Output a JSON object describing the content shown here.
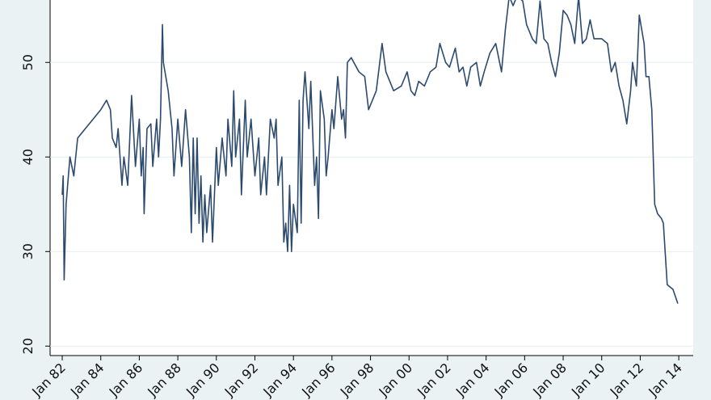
{
  "chart_data": {
    "type": "line",
    "color": "#2c4a6e",
    "grid": true,
    "xlim": [
      1981.37,
      2014.75
    ],
    "ylim": [
      19,
      56.6
    ],
    "yticks": [
      20,
      30,
      40,
      50
    ],
    "xticks": [
      {
        "value": 1982,
        "label": "Jan 82"
      },
      {
        "value": 1984,
        "label": "Jan 84"
      },
      {
        "value": 1986,
        "label": "Jan 86"
      },
      {
        "value": 1988,
        "label": "Jan 88"
      },
      {
        "value": 1990,
        "label": "Jan 90"
      },
      {
        "value": 1992,
        "label": "Jan 92"
      },
      {
        "value": 1994,
        "label": "Jan 94"
      },
      {
        "value": 1996,
        "label": "Jan 96"
      },
      {
        "value": 1998,
        "label": "Jan 98"
      },
      {
        "value": 2000,
        "label": "Jan 00"
      },
      {
        "value": 2002,
        "label": "Jan 02"
      },
      {
        "value": 2004,
        "label": "Jan 04"
      },
      {
        "value": 2006,
        "label": "Jan 06"
      },
      {
        "value": 2008,
        "label": "Jan 08"
      },
      {
        "value": 2010,
        "label": "Jan 10"
      },
      {
        "value": 2012,
        "label": "Jan 12"
      },
      {
        "value": 2014,
        "label": "Jan 14"
      }
    ],
    "x": [
      1982.0,
      1982.05,
      1982.1,
      1982.2,
      1982.4,
      1982.6,
      1982.8,
      1983.2,
      1983.6,
      1984.0,
      1984.3,
      1984.5,
      1984.6,
      1984.8,
      1984.9,
      1985.1,
      1985.2,
      1985.4,
      1985.6,
      1985.8,
      1986.0,
      1986.1,
      1986.2,
      1986.25,
      1986.4,
      1986.6,
      1986.7,
      1986.9,
      1987.0,
      1987.1,
      1987.2,
      1987.25,
      1987.5,
      1987.7,
      1987.8,
      1988.0,
      1988.2,
      1988.4,
      1988.6,
      1988.7,
      1988.8,
      1988.9,
      1989.0,
      1989.1,
      1989.2,
      1989.3,
      1989.4,
      1989.5,
      1989.7,
      1989.8,
      1990.0,
      1990.1,
      1990.3,
      1990.5,
      1990.6,
      1990.8,
      1990.9,
      1991.0,
      1991.2,
      1991.3,
      1991.5,
      1991.6,
      1991.8,
      1992.0,
      1992.2,
      1992.3,
      1992.5,
      1992.6,
      1992.8,
      1993.0,
      1993.1,
      1993.2,
      1993.4,
      1993.5,
      1993.6,
      1993.7,
      1993.8,
      1993.9,
      1994.0,
      1994.2,
      1994.3,
      1994.4,
      1994.5,
      1994.6,
      1994.8,
      1994.9,
      1995.1,
      1995.2,
      1995.3,
      1995.4,
      1995.6,
      1995.7,
      1995.8,
      1996.0,
      1996.1,
      1996.3,
      1996.5,
      1996.6,
      1996.7,
      1996.8,
      1997.0,
      1997.4,
      1997.7,
      1997.9,
      1998.3,
      1998.6,
      1998.8,
      1999.2,
      1999.6,
      1999.9,
      2000.1,
      2000.3,
      2000.5,
      2000.8,
      2001.1,
      2001.4,
      2001.6,
      2001.9,
      2002.1,
      2002.4,
      2002.6,
      2002.8,
      2003.0,
      2003.2,
      2003.5,
      2003.7,
      2003.9,
      2004.2,
      2004.5,
      2004.8,
      2005.0,
      2005.2,
      2005.4,
      2005.6,
      2005.9,
      2006.1,
      2006.4,
      2006.6,
      2006.8,
      2007.0,
      2007.2,
      2007.4,
      2007.6,
      2007.8,
      2008.0,
      2008.2,
      2008.4,
      2008.6,
      2008.8,
      2009.0,
      2009.2,
      2009.4,
      2009.6,
      2010.0,
      2010.3,
      2010.5,
      2010.7,
      2010.9,
      2011.1,
      2011.3,
      2011.5,
      2011.6,
      2011.8,
      2011.95,
      2012.2,
      2012.3,
      2012.45,
      2012.6,
      2012.75,
      2012.9,
      2013.1,
      2013.2,
      2013.4,
      2013.7,
      2013.95
    ],
    "values": [
      36,
      38,
      27,
      35,
      40,
      38,
      42,
      43,
      44,
      45,
      46,
      45,
      42,
      41,
      43,
      37,
      40,
      37,
      46.5,
      39,
      44,
      38,
      41,
      34,
      43,
      43.5,
      39,
      44,
      40,
      44,
      54,
      50,
      47,
      43,
      38,
      44,
      39,
      45,
      40,
      32,
      42,
      34,
      42,
      33,
      38,
      31,
      36,
      32,
      37,
      31,
      41,
      37,
      42,
      38,
      44,
      39,
      47,
      40,
      44,
      36,
      46,
      40,
      44,
      38,
      42,
      36,
      40,
      36,
      44,
      42,
      44,
      37,
      40,
      31,
      33,
      30,
      37,
      30,
      35,
      32,
      46,
      33,
      46,
      49,
      43,
      48,
      37,
      40,
      33.5,
      47,
      44,
      38,
      40,
      45,
      43,
      48.5,
      44,
      45,
      42,
      50,
      50.5,
      49,
      48.5,
      45,
      47,
      52,
      49,
      47,
      47.5,
      49,
      47,
      46.5,
      48,
      47.5,
      49,
      49.5,
      52,
      50,
      49.5,
      51.5,
      49,
      49.5,
      47.5,
      49.5,
      50,
      47.5,
      49,
      51,
      52,
      49,
      53.5,
      57,
      56,
      57,
      56.5,
      54,
      52.5,
      52,
      56.5,
      52.5,
      52,
      50,
      48.5,
      51,
      55.5,
      55,
      54,
      52,
      57,
      52,
      52.5,
      54.5,
      52.5,
      52.5,
      52,
      49,
      50,
      47.5,
      46,
      43.5,
      47,
      50,
      47.5,
      55,
      52,
      48.5,
      48.5,
      45,
      35,
      34,
      33.5,
      33,
      26.5,
      26,
      24.5
    ]
  }
}
